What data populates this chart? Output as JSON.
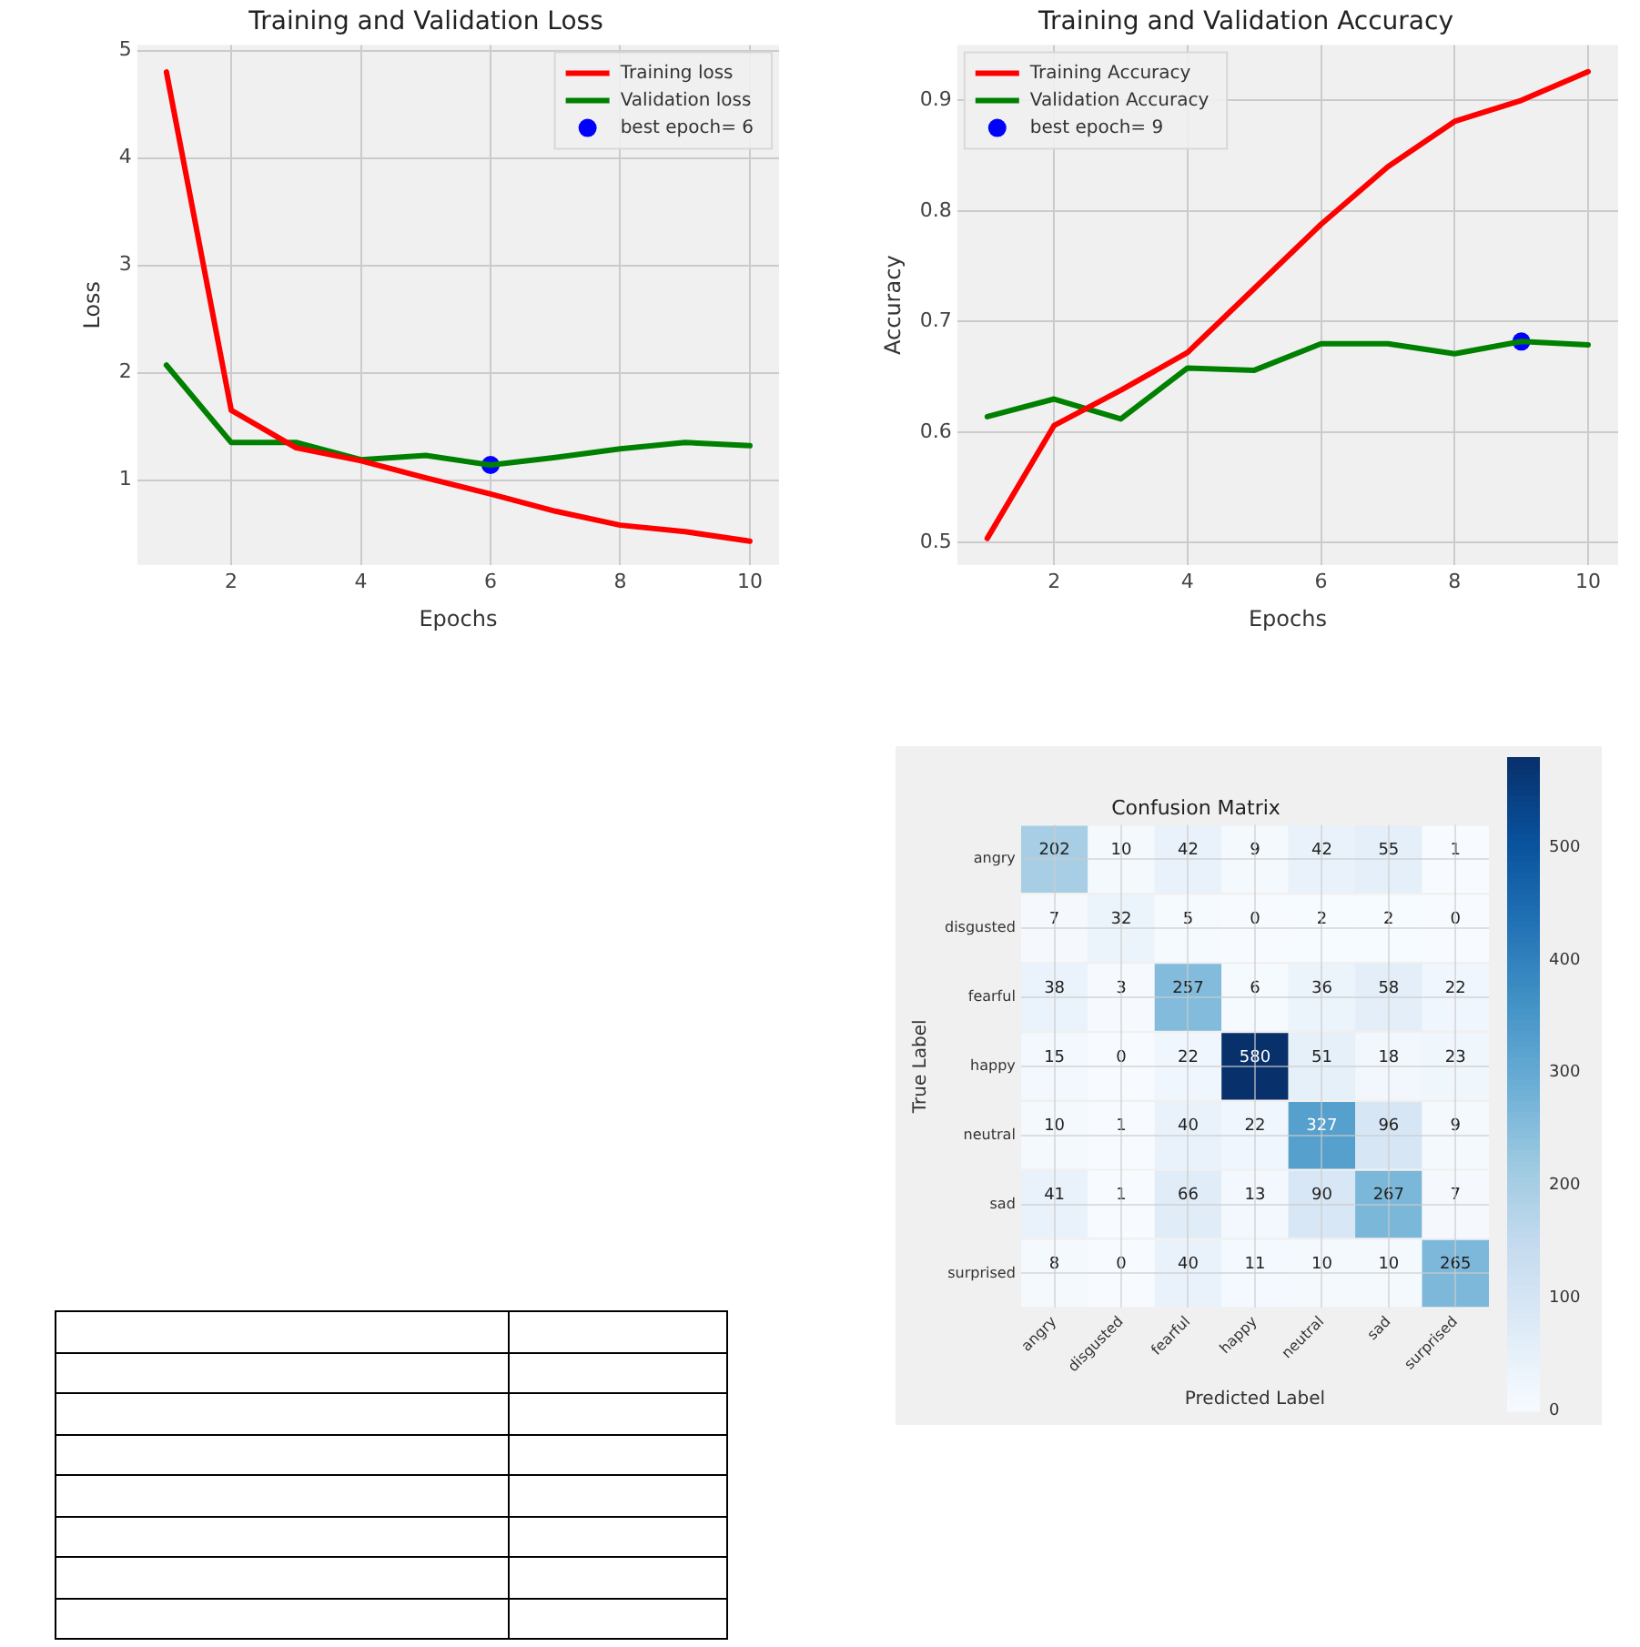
{
  "chart_data": [
    {
      "type": "line",
      "title": "Training and Validation Loss",
      "xlabel": "Epochs",
      "ylabel": "Loss",
      "x": [
        1,
        2,
        3,
        4,
        5,
        6,
        7,
        8,
        9,
        10
      ],
      "series": [
        {
          "name": "Training loss",
          "color": "#ff0000",
          "values": [
            4.8,
            1.65,
            1.3,
            1.18,
            1.02,
            0.87,
            0.71,
            0.58,
            0.52,
            0.43
          ]
        },
        {
          "name": "Validation loss",
          "color": "#008000",
          "values": [
            2.07,
            1.35,
            1.35,
            1.19,
            1.23,
            1.14,
            1.21,
            1.29,
            1.35,
            1.32
          ]
        },
        {
          "name": "best epoch= 6",
          "type": "scatter",
          "color": "#0000ff",
          "x": [
            6
          ],
          "values": [
            1.14
          ],
          "marker": "circle"
        }
      ],
      "xlim": [
        0.55,
        10.45
      ],
      "xticks": [
        2,
        4,
        6,
        8,
        10
      ],
      "ylim": [
        0.21,
        5.05
      ],
      "yticks": [
        1,
        2,
        3,
        4,
        5
      ],
      "grid": true,
      "legend": "top right",
      "marker": "none"
    },
    {
      "type": "line",
      "title": "Training and Validation Accuracy",
      "xlabel": "Epochs",
      "ylabel": "Accuracy",
      "x": [
        1,
        2,
        3,
        4,
        5,
        6,
        7,
        8,
        9,
        10
      ],
      "series": [
        {
          "name": "Training Accuracy",
          "color": "#ff0000",
          "values": [
            0.504,
            0.606,
            0.638,
            0.672,
            0.73,
            0.788,
            0.84,
            0.881,
            0.9,
            0.926
          ]
        },
        {
          "name": "Validation Accuracy",
          "color": "#008000",
          "values": [
            0.614,
            0.63,
            0.612,
            0.658,
            0.656,
            0.68,
            0.68,
            0.671,
            0.682,
            0.679
          ]
        },
        {
          "name": "best epoch= 9",
          "type": "scatter",
          "color": "#0000ff",
          "x": [
            9
          ],
          "values": [
            0.682
          ],
          "marker": "circle"
        }
      ],
      "xlim": [
        0.55,
        10.45
      ],
      "xticks": [
        2,
        4,
        6,
        8,
        10
      ],
      "ylim": [
        0.48,
        0.95
      ],
      "yticks": [
        0.5,
        0.6,
        0.7,
        0.8,
        0.9
      ],
      "grid": true,
      "legend": "top left",
      "marker": "none"
    },
    {
      "type": "heatmap",
      "title": "Confusion Matrix",
      "xlabel": "Predicted Label",
      "ylabel": "True Label",
      "categories": [
        "angry",
        "disgusted",
        "fearful",
        "happy",
        "neutral",
        "sad",
        "surprised"
      ],
      "y_categories": [
        "angry",
        "disgusted",
        "fearful",
        "happy",
        "neutral",
        "sad",
        "surprised"
      ],
      "cells": [
        [
          202,
          10,
          42,
          9,
          42,
          55,
          1
        ],
        [
          7,
          32,
          5,
          0,
          2,
          2,
          0
        ],
        [
          38,
          3,
          257,
          6,
          36,
          58,
          22
        ],
        [
          15,
          0,
          22,
          580,
          51,
          18,
          23
        ],
        [
          10,
          1,
          40,
          22,
          327,
          96,
          9
        ],
        [
          41,
          1,
          66,
          13,
          90,
          267,
          7
        ],
        [
          8,
          0,
          40,
          11,
          10,
          10,
          265
        ]
      ],
      "clim": [
        0,
        580
      ],
      "cticks": [
        0,
        100,
        200,
        300,
        400,
        500
      ],
      "data_labels": true,
      "grid": true
    }
  ]
}
